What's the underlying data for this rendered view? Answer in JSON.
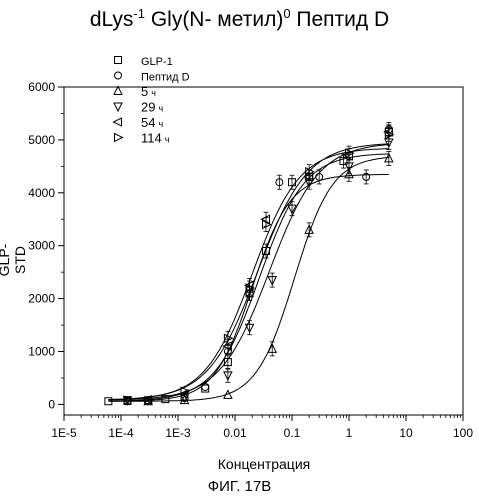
{
  "title": {
    "part1": "dLys",
    "sup1": "-1",
    "part2": " Gly(N- метил)",
    "sup2": "0",
    "part3": " Пептид D"
  },
  "caption": "ФИГ. 17В",
  "chart_data": {
    "type": "scatter",
    "title": "dLys-1 Gly(N- метил)0 Пептид D",
    "xlabel": "Концентрация",
    "ylabel": "GLP-STD",
    "xscale": "log",
    "xlim": [
      1e-05,
      100
    ],
    "ylim": [
      -200,
      6000
    ],
    "xticks": [
      "1E-5",
      "1E-4",
      "1E-3",
      "0.01",
      "0.1",
      "1",
      "10",
      "100"
    ],
    "yticks": [
      "0",
      "1000",
      "2000",
      "3000",
      "4000",
      "5000",
      "6000"
    ],
    "legend_position": "top-left",
    "series": [
      {
        "name": "GLP-1",
        "marker": "square",
        "suffix": "",
        "x": [
          6e-05,
          0.00013,
          0.0003,
          0.0006,
          0.0013,
          0.003,
          0.0075,
          0.018,
          0.035,
          0.1,
          0.2,
          0.8,
          5
        ],
        "y": [
          60,
          65,
          80,
          100,
          150,
          300,
          800,
          2100,
          2900,
          4200,
          4300,
          4600,
          5150
        ],
        "fit": {
          "bottom": 60,
          "top": 4750,
          "ec50": 0.027,
          "hill": 1.1
        }
      },
      {
        "name": "Пептид D",
        "marker": "circle",
        "suffix": "",
        "x": [
          0.00013,
          0.0003,
          0.0013,
          0.003,
          0.0075,
          0.018,
          0.06,
          0.3,
          2,
          5
        ],
        "y": [
          60,
          75,
          120,
          330,
          1000,
          2100,
          4200,
          4300,
          4300,
          5200
        ],
        "fit": {
          "bottom": 60,
          "top": 4350,
          "ec50": 0.02,
          "hill": 1.3
        }
      },
      {
        "name": "5",
        "marker": "triangle-up",
        "suffix": "ч",
        "x": [
          0.0003,
          0.0013,
          0.0075,
          0.045,
          0.2,
          1,
          5
        ],
        "y": [
          60,
          80,
          180,
          1050,
          3300,
          4350,
          4650
        ],
        "fit": {
          "bottom": 60,
          "top": 4700,
          "ec50": 0.11,
          "hill": 1.3
        }
      },
      {
        "name": "29",
        "marker": "triangle-down",
        "suffix": "ч",
        "x": [
          0.00013,
          0.0013,
          0.0075,
          0.018,
          0.045,
          0.1,
          0.2,
          1,
          5
        ],
        "y": [
          80,
          130,
          550,
          1450,
          2350,
          3700,
          4200,
          4500,
          4950
        ],
        "fit": {
          "bottom": 80,
          "top": 4950,
          "ec50": 0.04,
          "hill": 1.0
        }
      },
      {
        "name": "54",
        "marker": "triangle-left",
        "suffix": "ч",
        "x": [
          0.0003,
          0.0013,
          0.0075,
          0.018,
          0.035,
          0.2,
          1,
          5
        ],
        "y": [
          90,
          200,
          1100,
          2250,
          3500,
          4300,
          4700,
          5150
        ],
        "fit": {
          "bottom": 80,
          "top": 4850,
          "ec50": 0.02,
          "hill": 1.05
        }
      },
      {
        "name": "114",
        "marker": "triangle-right",
        "suffix": "ч",
        "x": [
          0.00013,
          0.0013,
          0.0075,
          0.018,
          0.035,
          0.2,
          1,
          5
        ],
        "y": [
          80,
          250,
          1250,
          2200,
          3400,
          4400,
          4750,
          5100
        ],
        "fit": {
          "bottom": 80,
          "top": 4950,
          "ec50": 0.025,
          "hill": 1.0
        }
      }
    ]
  }
}
